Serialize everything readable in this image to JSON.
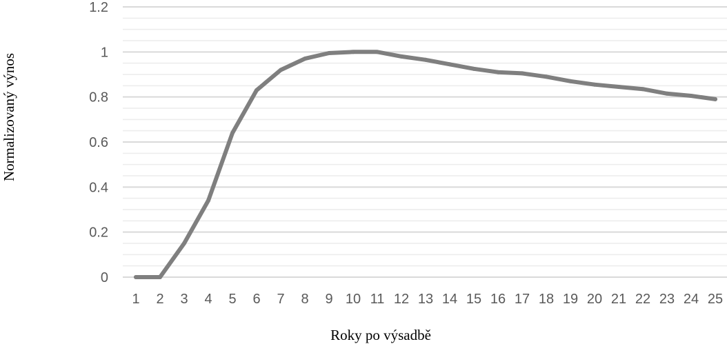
{
  "chart_data": {
    "type": "line",
    "xlabel": "Roky po výsadbě",
    "ylabel": "Normalizovaný výnos",
    "categories": [
      "1",
      "2",
      "3",
      "4",
      "5",
      "6",
      "7",
      "8",
      "9",
      "10",
      "11",
      "12",
      "13",
      "14",
      "15",
      "16",
      "17",
      "18",
      "19",
      "20",
      "21",
      "22",
      "23",
      "24",
      "25"
    ],
    "series": [
      {
        "values": [
          0,
          0,
          0.15,
          0.34,
          0.64,
          0.83,
          0.92,
          0.97,
          0.995,
          1.0,
          1.0,
          0.98,
          0.965,
          0.945,
          0.925,
          0.91,
          0.905,
          0.89,
          0.87,
          0.855,
          0.845,
          0.835,
          0.815,
          0.805,
          0.79
        ]
      }
    ],
    "yticks": [
      "0",
      "0.2",
      "0.4",
      "0.6",
      "0.8",
      "1",
      "1.2"
    ],
    "ylim": [
      0,
      1.2
    ],
    "grid": true,
    "colors": {
      "line": "#7f7f7f",
      "grid_major": "#d9d9d9",
      "grid_minor": "#ececec"
    }
  }
}
